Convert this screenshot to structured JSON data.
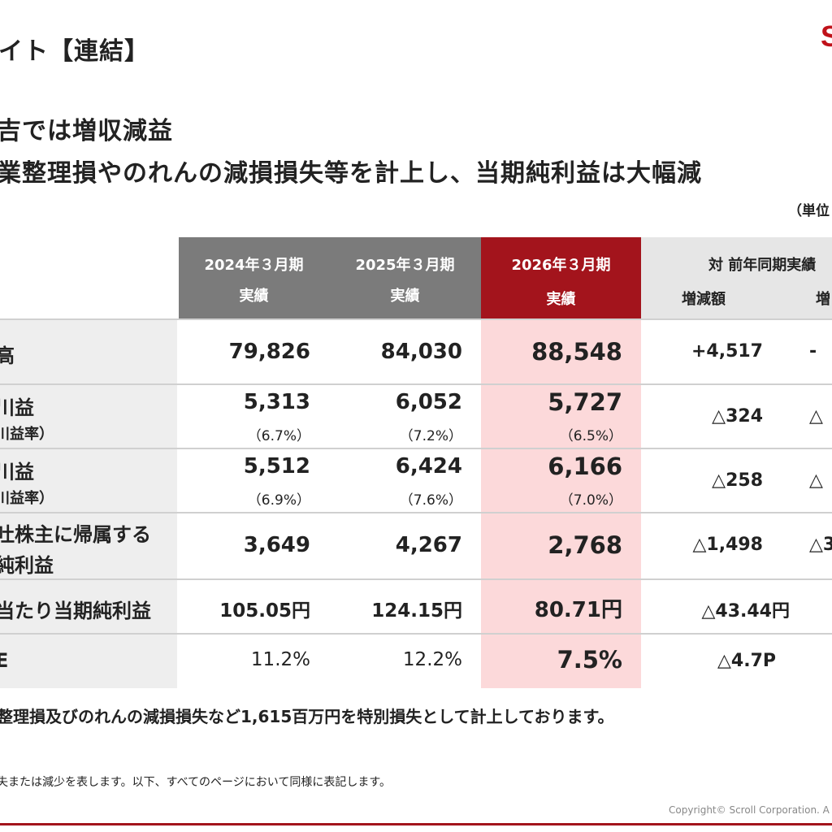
{
  "header": {
    "title": "イト【連結】",
    "logo_text": "S"
  },
  "headlines": [
    "吉では増収減益",
    "業整理損やのれんの減損損失等を計上し、当期純利益は大幅減"
  ],
  "unit_label": "（単位",
  "table": {
    "columns": [
      {
        "line1": "2024年３月期",
        "line2": "実績"
      },
      {
        "line1": "2025年３月期",
        "line2": "実績"
      },
      {
        "line1": "2026年３月期",
        "line2": "実績"
      }
    ],
    "comparison_header": {
      "title": "対 前年同期実績",
      "col1": "増減額",
      "col2": "増"
    },
    "rows": [
      {
        "label": "高",
        "sublabel": "",
        "values": [
          "79,826",
          "84,030",
          "88,548"
        ],
        "subvalues": [
          "",
          "",
          ""
        ],
        "diff": "+4,517",
        "cut": "-"
      },
      {
        "label": "川益",
        "sublabel": "川益率）",
        "values": [
          "5,313",
          "6,052",
          "5,727"
        ],
        "subvalues": [
          "（6.7%）",
          "（7.2%）",
          "（6.5%）"
        ],
        "diff": "△324",
        "cut": "△"
      },
      {
        "label": "川益",
        "sublabel": "川益率）",
        "values": [
          "5,512",
          "6,424",
          "6,166"
        ],
        "subvalues": [
          "（6.9%）",
          "（7.6%）",
          "（7.0%）"
        ],
        "diff": "△258",
        "cut": "△"
      },
      {
        "label": "吐株主に帰属する",
        "sublabel": "純利益",
        "values": [
          "3,649",
          "4,267",
          "2,768"
        ],
        "subvalues": [
          "",
          "",
          ""
        ],
        "diff": "△1,498",
        "cut": "△3"
      },
      {
        "label": "当たり当期純利益",
        "sublabel": "",
        "values": [
          "105.05円",
          "124.15円",
          "80.71円"
        ],
        "subvalues": [
          "",
          "",
          ""
        ],
        "diff": "△43.44円",
        "cut": ""
      },
      {
        "label": "E",
        "sublabel": "",
        "values": [
          "11.2%",
          "12.2%",
          "7.5%"
        ],
        "subvalues": [
          "",
          "",
          ""
        ],
        "diff": "△4.7P",
        "cut": ""
      }
    ]
  },
  "note": "整理損及びのれんの減損損失など1,615百万円を特別損失として計上しております。",
  "footnote": "失または減少を表します。以下、すべてのページにおいて同様に表記します。",
  "copyright": "Copyright© Scroll Corporation. A",
  "colors": {
    "accent_red": "#a3141c",
    "highlight_pink": "#fcd9da",
    "header_gray": "#7b7b7b"
  }
}
